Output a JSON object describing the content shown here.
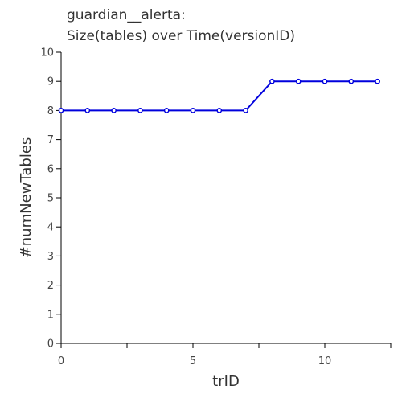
{
  "chart_data": {
    "type": "line",
    "title_lines": [
      "guardian__alerta:",
      "Size(tables) over Time(versionID)"
    ],
    "xlabel": "trID",
    "ylabel": "#numNewTables",
    "xlim": [
      0,
      12.5
    ],
    "ylim": [
      0,
      10
    ],
    "xticks": [
      0,
      5,
      10
    ],
    "yticks": [
      0,
      1,
      2,
      3,
      4,
      5,
      6,
      7,
      8,
      9,
      10
    ],
    "grid": false,
    "legend": "none",
    "series": [
      {
        "color": "#0000dd",
        "x": [
          0,
          1,
          2,
          3,
          4,
          5,
          6,
          7,
          8,
          9,
          10,
          11,
          12
        ],
        "y": [
          8,
          8,
          8,
          8,
          8,
          8,
          8,
          8,
          9,
          9,
          9,
          9,
          9
        ]
      }
    ]
  }
}
